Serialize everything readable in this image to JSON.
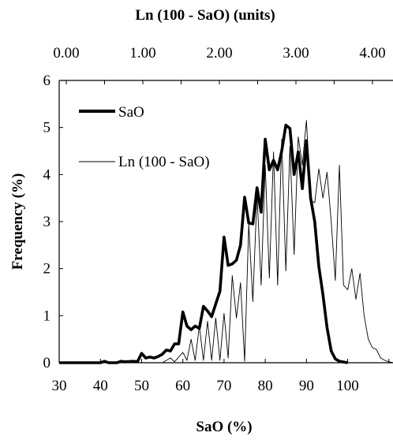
{
  "chart_data": {
    "type": "line",
    "title": "Ln (100 - SaO) (units)",
    "xlabel": "SaO (%)",
    "ylabel": "Frequency (%)",
    "xlim": [
      30,
      111
    ],
    "ylim": [
      0,
      6
    ],
    "x_ticks": [
      "30",
      "40",
      "50",
      "60",
      "70",
      "80",
      "90",
      "100"
    ],
    "y_ticks": [
      "0",
      "1",
      "2",
      "3",
      "4",
      "5",
      "6"
    ],
    "top_axis": {
      "label": "Ln (100 - SaO) (units)",
      "ticks": [
        "0.00",
        "1.00",
        "2.00",
        "3.00",
        "4.00"
      ]
    },
    "legend_position": "upper-left",
    "series": [
      {
        "name": "SaO",
        "style": "thick",
        "color": "#000000",
        "points": [
          [
            30,
            0
          ],
          [
            40,
            0
          ],
          [
            41,
            0.03
          ],
          [
            42,
            0
          ],
          [
            44,
            0
          ],
          [
            45,
            0.03
          ],
          [
            46,
            0.02
          ],
          [
            48,
            0.03
          ],
          [
            49,
            0.02
          ],
          [
            50,
            0.2
          ],
          [
            51,
            0.1
          ],
          [
            52,
            0.12
          ],
          [
            53,
            0.1
          ],
          [
            54,
            0.13
          ],
          [
            55,
            0.18
          ],
          [
            56,
            0.27
          ],
          [
            57,
            0.25
          ],
          [
            58,
            0.4
          ],
          [
            59,
            0.4
          ],
          [
            60,
            1.08
          ],
          [
            61,
            0.78
          ],
          [
            62,
            0.7
          ],
          [
            63,
            0.78
          ],
          [
            64,
            0.73
          ],
          [
            65,
            1.2
          ],
          [
            66,
            1.1
          ],
          [
            67,
            0.98
          ],
          [
            68,
            1.25
          ],
          [
            69,
            1.52
          ],
          [
            70,
            2.67
          ],
          [
            71,
            2.07
          ],
          [
            72,
            2.1
          ],
          [
            73,
            2.18
          ],
          [
            74,
            2.5
          ],
          [
            75,
            3.52
          ],
          [
            76,
            2.97
          ],
          [
            77,
            2.95
          ],
          [
            78,
            3.72
          ],
          [
            79,
            3.2
          ],
          [
            80,
            4.75
          ],
          [
            81,
            4.1
          ],
          [
            82,
            4.3
          ],
          [
            83,
            4.1
          ],
          [
            84,
            4.5
          ],
          [
            85,
            5.05
          ],
          [
            86,
            4.98
          ],
          [
            87,
            4.0
          ],
          [
            88,
            4.48
          ],
          [
            89,
            3.7
          ],
          [
            90,
            4.72
          ],
          [
            91,
            3.5
          ],
          [
            92,
            3.0
          ],
          [
            93,
            2.05
          ],
          [
            94,
            1.45
          ],
          [
            95,
            0.75
          ],
          [
            96,
            0.25
          ],
          [
            97,
            0.08
          ],
          [
            98,
            0.03
          ],
          [
            100,
            0.0
          ]
        ]
      },
      {
        "name": "Ln (100 - SaO)",
        "style": "thin",
        "color": "#000000",
        "points": [
          [
            30,
            0
          ],
          [
            55,
            0
          ],
          [
            57,
            0.1
          ],
          [
            58,
            0.02
          ],
          [
            60,
            0.22
          ],
          [
            61,
            0.05
          ],
          [
            62,
            0.5
          ],
          [
            63,
            0.05
          ],
          [
            64,
            0.78
          ],
          [
            65,
            0.05
          ],
          [
            66,
            0.88
          ],
          [
            67,
            0.05
          ],
          [
            68,
            0.95
          ],
          [
            69,
            0.05
          ],
          [
            70,
            1.05
          ],
          [
            71,
            0.1
          ],
          [
            72,
            1.85
          ],
          [
            73,
            0.95
          ],
          [
            74,
            1.7
          ],
          [
            75,
            0.03
          ],
          [
            76,
            2.95
          ],
          [
            77,
            1.3
          ],
          [
            78,
            3.6
          ],
          [
            79,
            1.65
          ],
          [
            80,
            4.2
          ],
          [
            81,
            1.8
          ],
          [
            82,
            4.48
          ],
          [
            83,
            1.65
          ],
          [
            84,
            4.75
          ],
          [
            85,
            1.95
          ],
          [
            86,
            4.6
          ],
          [
            87,
            2.3
          ],
          [
            88,
            4.8
          ],
          [
            89,
            4.2
          ],
          [
            90,
            5.15
          ],
          [
            91,
            3.45
          ],
          [
            92,
            3.4
          ],
          [
            93,
            4.12
          ],
          [
            94,
            3.5
          ],
          [
            95,
            4.05
          ],
          [
            96,
            3.0
          ],
          [
            97,
            1.75
          ],
          [
            98,
            4.2
          ],
          [
            99,
            1.65
          ],
          [
            100,
            1.55
          ],
          [
            101,
            2.0
          ],
          [
            102,
            1.35
          ],
          [
            103,
            1.9
          ],
          [
            104,
            1.0
          ],
          [
            105,
            0.5
          ],
          [
            106,
            0.32
          ],
          [
            107,
            0.28
          ],
          [
            108,
            0.1
          ],
          [
            109,
            0.05
          ],
          [
            110,
            0.02
          ],
          [
            111,
            0
          ]
        ]
      }
    ]
  }
}
